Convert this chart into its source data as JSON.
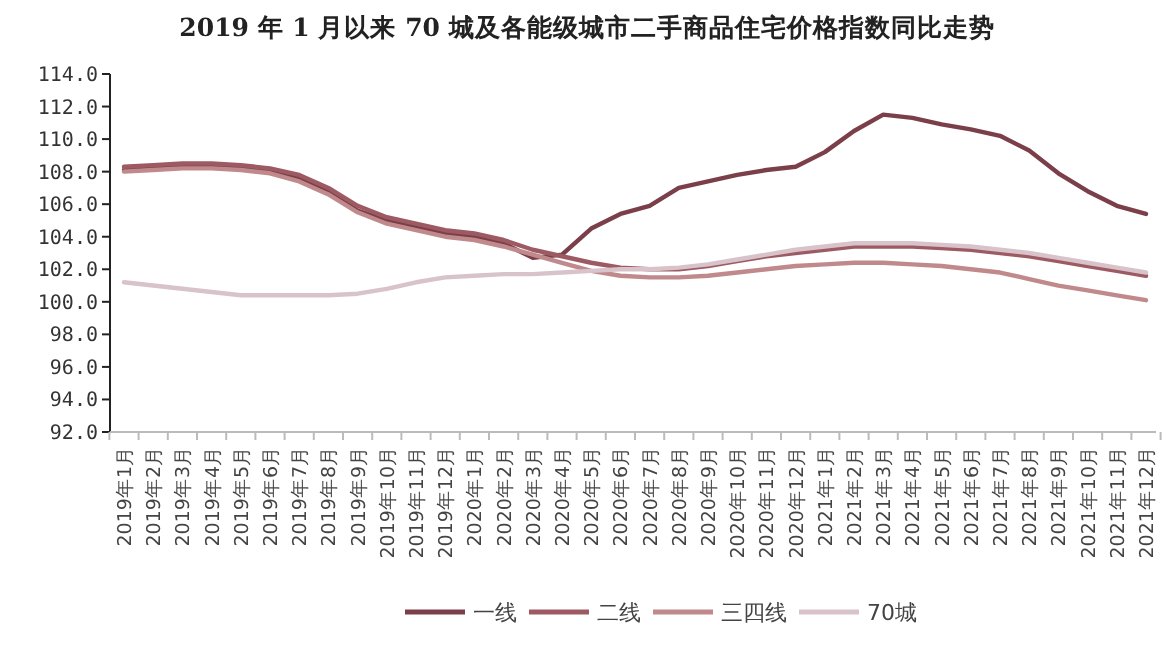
{
  "chart_data": {
    "type": "line",
    "title": "2019 年 1 月以来 70 城及各能级城市二手商品住宅价格指数同比走势",
    "categories": [
      "2019年1月",
      "2019年2月",
      "2019年3月",
      "2019年4月",
      "2019年5月",
      "2019年6月",
      "2019年7月",
      "2019年8月",
      "2019年9月",
      "2019年10月",
      "2019年11月",
      "2019年12月",
      "2020年1月",
      "2020年2月",
      "2020年3月",
      "2020年4月",
      "2020年5月",
      "2020年6月",
      "2020年7月",
      "2020年8月",
      "2020年9月",
      "2020年10月",
      "2020年11月",
      "2020年12月",
      "2021年1月",
      "2021年2月",
      "2021年3月",
      "2021年4月",
      "2021年5月",
      "2021年6月",
      "2021年7月",
      "2021年8月",
      "2021年9月",
      "2021年10月",
      "2021年11月",
      "2021年12月"
    ],
    "series": [
      {
        "name": "一线",
        "color": "#7b3f4a",
        "values": [
          108.1,
          108.2,
          108.3,
          108.3,
          108.3,
          108.1,
          107.6,
          106.8,
          105.6,
          105.0,
          104.6,
          104.2,
          104.0,
          103.6,
          102.7,
          102.9,
          104.5,
          105.4,
          105.9,
          107.0,
          107.4,
          107.8,
          108.1,
          108.3,
          109.2,
          110.5,
          111.5,
          111.3,
          110.9,
          110.6,
          110.2,
          109.3,
          107.9,
          106.8,
          105.9,
          105.4
        ]
      },
      {
        "name": "二线",
        "color": "#9e5a63",
        "values": [
          108.3,
          108.4,
          108.5,
          108.5,
          108.4,
          108.2,
          107.8,
          107.0,
          105.9,
          105.2,
          104.8,
          104.4,
          104.2,
          103.8,
          103.2,
          102.8,
          102.4,
          102.1,
          102.0,
          102.0,
          102.2,
          102.5,
          102.8,
          103.0,
          103.2,
          103.4,
          103.4,
          103.4,
          103.3,
          103.2,
          103.0,
          102.8,
          102.5,
          102.2,
          101.9,
          101.6
        ]
      },
      {
        "name": "三四线",
        "color": "#c08a8c",
        "values": [
          108.0,
          108.1,
          108.2,
          108.2,
          108.1,
          107.9,
          107.4,
          106.6,
          105.5,
          104.8,
          104.4,
          104.0,
          103.8,
          103.4,
          102.9,
          102.4,
          101.9,
          101.6,
          101.5,
          101.5,
          101.6,
          101.8,
          102.0,
          102.2,
          102.3,
          102.4,
          102.4,
          102.3,
          102.2,
          102.0,
          101.8,
          101.4,
          101.0,
          100.7,
          100.4,
          100.1
        ]
      },
      {
        "name": "70城",
        "color": "#d9c3ca",
        "values": [
          101.2,
          101.0,
          100.8,
          100.6,
          100.4,
          100.4,
          100.4,
          100.4,
          100.5,
          100.8,
          101.2,
          101.5,
          101.6,
          101.7,
          101.7,
          101.8,
          101.9,
          102.0,
          102.0,
          102.1,
          102.3,
          102.6,
          102.9,
          103.2,
          103.4,
          103.6,
          103.6,
          103.6,
          103.5,
          103.4,
          103.2,
          103.0,
          102.7,
          102.4,
          102.1,
          101.8
        ]
      }
    ],
    "ylim": [
      92,
      114
    ],
    "yticks": [
      {
        "value": 92,
        "label": "92.0"
      },
      {
        "value": 94,
        "label": "94.0"
      },
      {
        "value": 96,
        "label": "96.0"
      },
      {
        "value": 98,
        "label": "98.0"
      },
      {
        "value": 100,
        "label": "100.0"
      },
      {
        "value": 102,
        "label": "102.0"
      },
      {
        "value": 104,
        "label": "104.0"
      },
      {
        "value": 106,
        "label": "106.0"
      },
      {
        "value": 108,
        "label": "108.0"
      },
      {
        "value": 110,
        "label": "110.0"
      },
      {
        "value": 112,
        "label": "112.0"
      },
      {
        "value": 114,
        "label": "114.0"
      }
    ],
    "legend": "bottom",
    "grid": false,
    "marker": "none",
    "line_style": "solid"
  }
}
